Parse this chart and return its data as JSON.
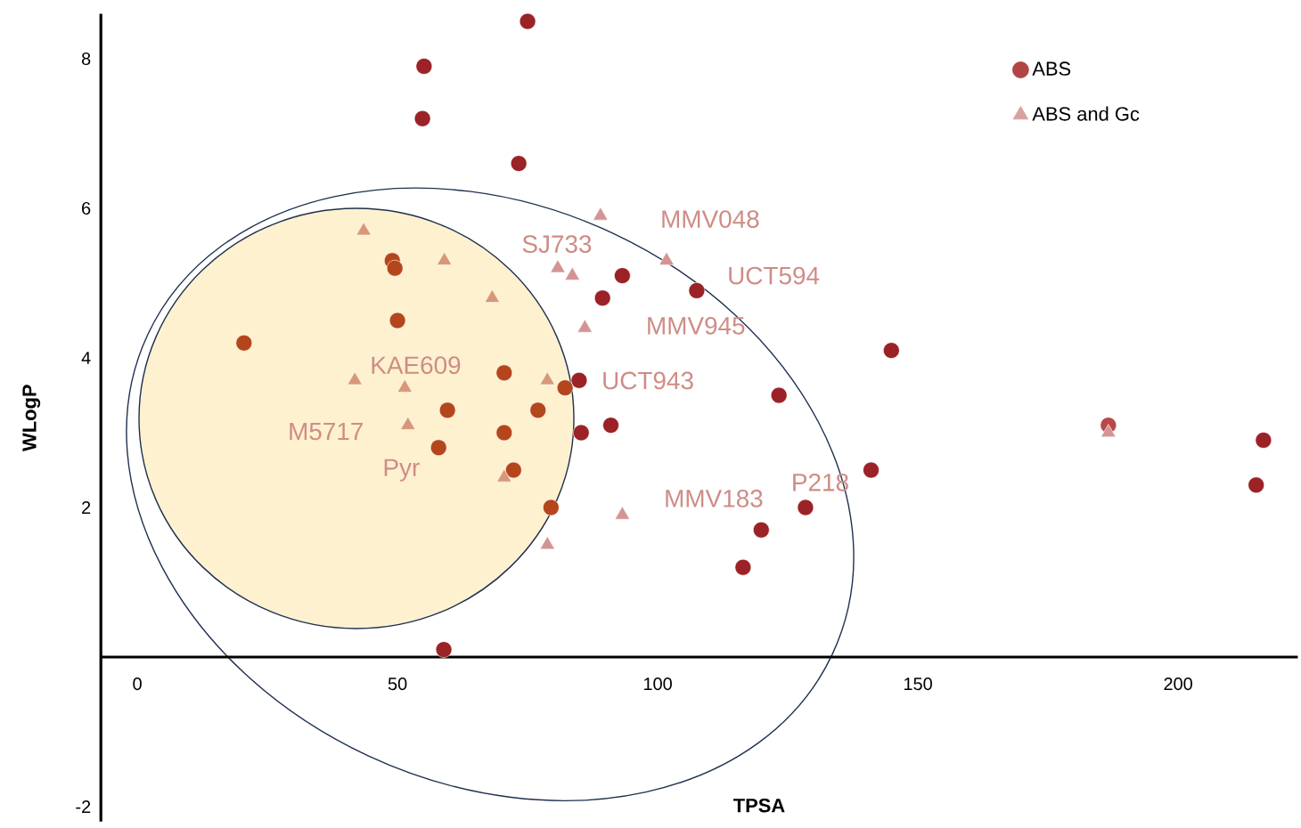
{
  "chart_data": {
    "type": "scatter",
    "xlabel": "TPSA",
    "ylabel": "WLogP",
    "xlim": [
      -7,
      223
    ],
    "ylim": [
      -2.2,
      8.6
    ],
    "xticks": [
      0,
      50,
      100,
      150,
      200
    ],
    "yticks": [
      -2,
      2,
      4,
      6,
      8
    ],
    "legend": "top right",
    "grid": false,
    "series": [
      {
        "name": "ABS",
        "marker": "circle",
        "color": "#b04545",
        "x": [
          75,
          55.1,
          54.8,
          73.3,
          49,
          49.5,
          93.2,
          89.4,
          50,
          20.5,
          70.5,
          84.9,
          82.2,
          59.6,
          77,
          70.5,
          85.3,
          91,
          57.9,
          72.3,
          79.5,
          58.9,
          107.5,
          144.9,
          123.3,
          141,
          128.4,
          119.9,
          116.4,
          186.6,
          216.4,
          215
        ],
        "values": [
          8.5,
          7.9,
          7.2,
          6.6,
          5.3,
          5.2,
          5.1,
          4.8,
          4.5,
          4.2,
          3.8,
          3.7,
          3.6,
          3.3,
          3.3,
          3.0,
          3.0,
          3.1,
          2.8,
          2.5,
          2.0,
          0.1,
          4.9,
          4.1,
          3.5,
          2.5,
          2.0,
          1.7,
          1.2,
          3.1,
          2.9,
          2.3
        ],
        "colors": [
          "#9b2226",
          "#9b2226",
          "#9b2226",
          "#9b2226",
          "#b5461c",
          "#b5461c",
          "#9b2226",
          "#9b2226",
          "#b5461c",
          "#b5461c",
          "#b5461c",
          "#9b2226",
          "#b5461c",
          "#b5461c",
          "#b5461c",
          "#b5461c",
          "#9b2226",
          "#9b2226",
          "#b5461c",
          "#b5461c",
          "#b5461c",
          "#9b2226",
          "#9b2226",
          "#9b2226",
          "#9b2226",
          "#9b2226",
          "#9b2226",
          "#9b2226",
          "#9b2226",
          "#b84848",
          "#9b2226",
          "#9b2226"
        ]
      },
      {
        "name": "ABS and Gc",
        "marker": "triangle",
        "color": "#d9a0a0",
        "x": [
          43.5,
          59,
          68.2,
          80.8,
          83.6,
          89,
          86,
          41.8,
          51.4,
          78.8,
          52,
          70.5,
          93.2,
          78.8,
          101.7,
          186.6
        ],
        "values": [
          5.7,
          5.3,
          4.8,
          5.2,
          5.1,
          5.9,
          4.4,
          3.7,
          3.6,
          3.7,
          3.1,
          2.4,
          1.9,
          1.5,
          5.3,
          3.0
        ],
        "colors": [
          "#d9977a",
          "#d9977a",
          "#d9977a",
          "#d49494",
          "#d49494",
          "#d49494",
          "#d49494",
          "#d9977a",
          "#d9977a",
          "#d9977a",
          "#d9977a",
          "#d9977a",
          "#d49494",
          "#d49494",
          "#d49494",
          "#d49494"
        ]
      }
    ],
    "annotations": [
      "SJ733",
      "MMV048",
      "UCT594",
      "MMV945",
      "KAE609",
      "UCT943",
      "M5717",
      "Pyr",
      "MMV183",
      "P218"
    ]
  }
}
